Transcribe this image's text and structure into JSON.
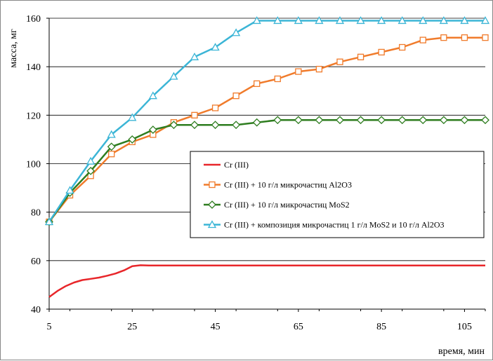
{
  "chart_data": {
    "type": "line",
    "title": "",
    "xlabel": "время, мин",
    "ylabel": "масса, мг",
    "xlim": [
      5,
      110
    ],
    "ylim": [
      40,
      160
    ],
    "x_ticks": [
      "5",
      "25",
      "45",
      "65",
      "85",
      "105"
    ],
    "x_tick_values": [
      5,
      25,
      45,
      65,
      85,
      105
    ],
    "y_ticks": [
      "40",
      "60",
      "80",
      "100",
      "120",
      "140",
      "160"
    ],
    "y_tick_values": [
      40,
      60,
      80,
      100,
      120,
      140,
      160
    ],
    "grid": "horizontal",
    "legend_position": "center-right",
    "series": [
      {
        "name": "Cr (III)",
        "color": "#e8262a",
        "marker": "none",
        "x": [
          5,
          7,
          9,
          11,
          13,
          15,
          17,
          19,
          21,
          23,
          25,
          27,
          29,
          35,
          45,
          55,
          65,
          75,
          85,
          95,
          105,
          110
        ],
        "y": [
          45,
          47.5,
          49.5,
          51,
          52,
          52.5,
          53,
          53.8,
          54.7,
          56,
          57.7,
          58.1,
          58,
          58,
          58,
          58,
          58,
          58,
          58,
          58,
          58,
          58
        ]
      },
      {
        "name": "Cr (III) + 10 г/л микрочастиц Al2O3",
        "color": "#f07b2b",
        "marker": "square",
        "x": [
          5,
          10,
          15,
          20,
          25,
          30,
          35,
          40,
          45,
          50,
          55,
          60,
          65,
          70,
          75,
          80,
          85,
          90,
          95,
          100,
          105,
          110
        ],
        "y": [
          76,
          87,
          95,
          104,
          109,
          112,
          117,
          120,
          123,
          128,
          133,
          135,
          138,
          139,
          142,
          144,
          146,
          148,
          151,
          152,
          152,
          152
        ]
      },
      {
        "name": "Cr (III) + 10 г/л микрочастиц MoS2",
        "color": "#2e7d1f",
        "marker": "diamond",
        "x": [
          5,
          10,
          15,
          20,
          25,
          30,
          35,
          40,
          45,
          50,
          55,
          60,
          65,
          70,
          75,
          80,
          85,
          90,
          95,
          100,
          105,
          110
        ],
        "y": [
          76,
          88,
          97,
          107,
          110,
          114,
          116,
          116,
          116,
          116,
          117,
          118,
          118,
          118,
          118,
          118,
          118,
          118,
          118,
          118,
          118,
          118
        ]
      },
      {
        "name": "Cr (III) +  композиция микрочастиц 1 г/л MoS2 и 10 г/л Al2O3",
        "color": "#3bb5d6",
        "marker": "triangle",
        "x": [
          5,
          10,
          15,
          20,
          25,
          30,
          35,
          40,
          45,
          50,
          55,
          60,
          65,
          70,
          75,
          80,
          85,
          90,
          95,
          100,
          105,
          110
        ],
        "y": [
          76,
          89,
          101,
          112,
          119,
          128,
          136,
          144,
          148,
          154,
          159,
          159,
          159,
          159,
          159,
          159,
          159,
          159,
          159,
          159,
          159,
          159
        ]
      }
    ]
  }
}
